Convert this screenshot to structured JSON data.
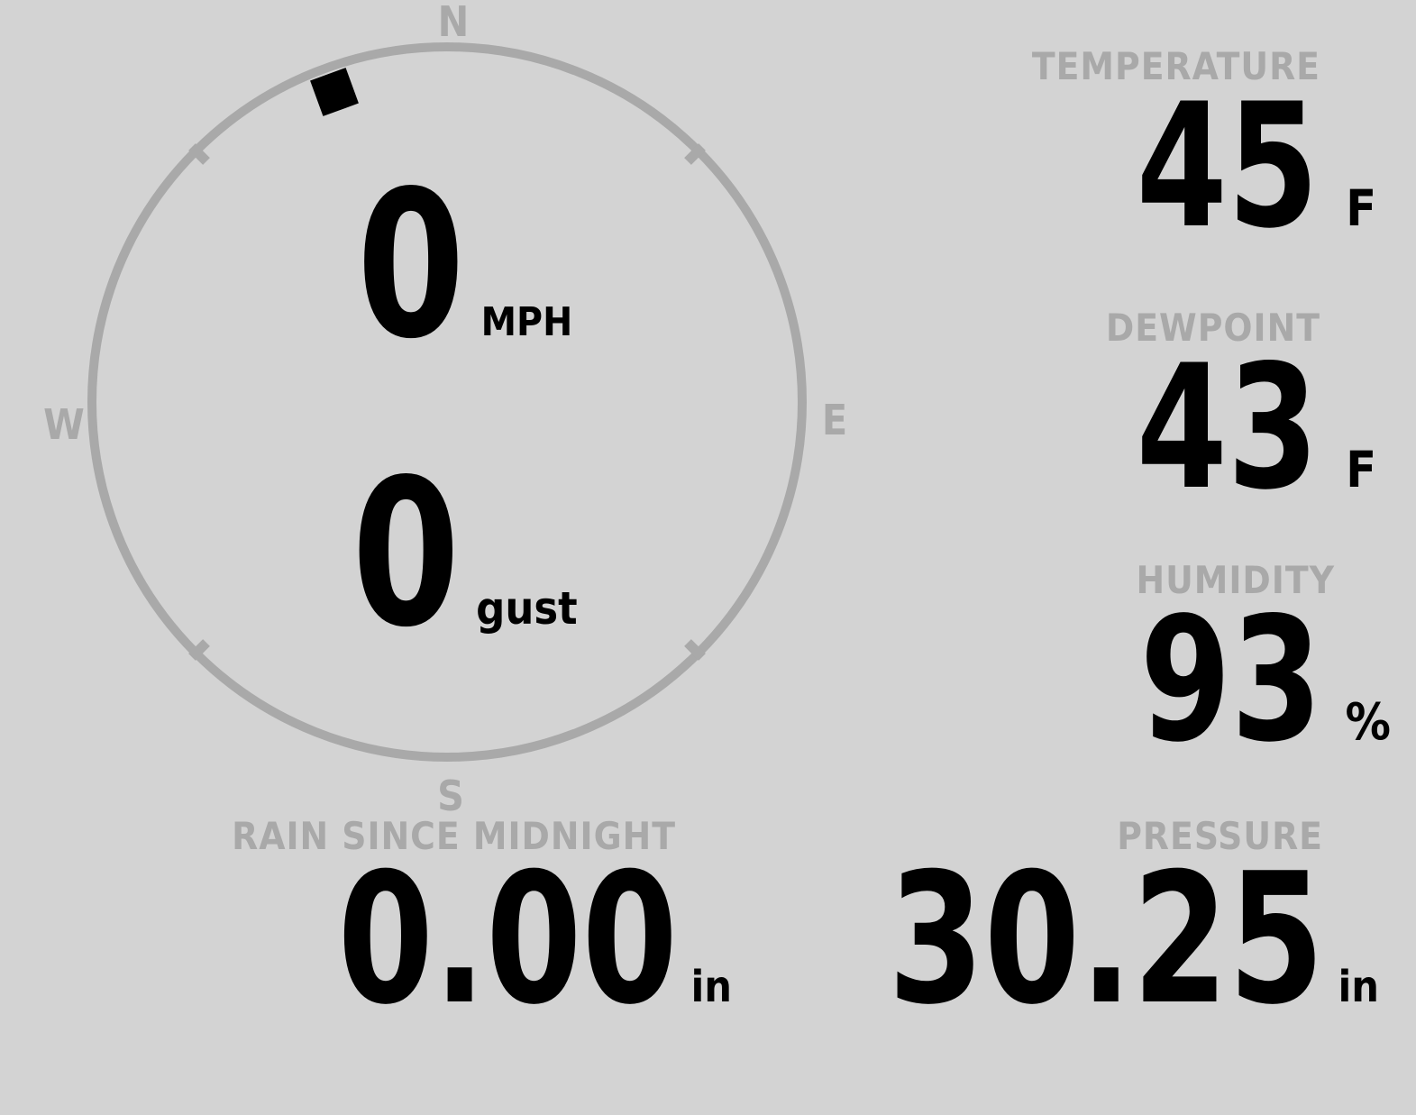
{
  "theme": {
    "background": "#d3d3d3",
    "muted_gray": "#a9a9a9",
    "text_black": "#000000"
  },
  "wind": {
    "direction_deg": 340,
    "compass": {
      "north": "N",
      "east": "E",
      "south": "S",
      "west": "W"
    },
    "speed": {
      "value": "0",
      "unit": "MPH"
    },
    "gust": {
      "value": "0",
      "unit": "gust"
    }
  },
  "metrics": {
    "temperature": {
      "label": "TEMPERATURE",
      "value": "45",
      "unit": "F"
    },
    "dewpoint": {
      "label": "DEWPOINT",
      "value": "43",
      "unit": "F"
    },
    "humidity": {
      "label": "HUMIDITY",
      "value": "93",
      "unit": "%"
    },
    "rain_since_midnight": {
      "label": "RAIN SINCE MIDNIGHT",
      "value": "0.00",
      "unit": "in"
    },
    "pressure": {
      "label": "PRESSURE",
      "value": "30.25",
      "unit": "in"
    }
  }
}
